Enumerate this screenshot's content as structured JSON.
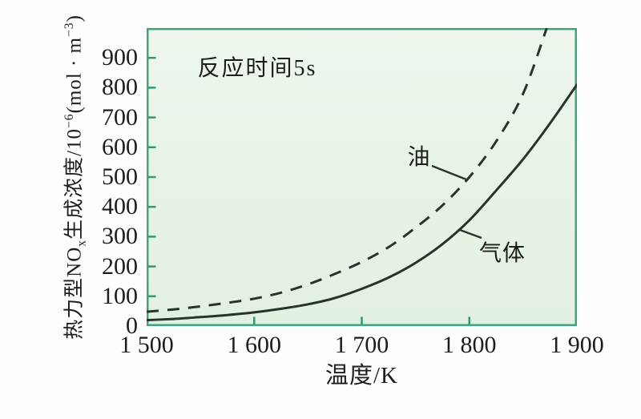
{
  "colors": {
    "figure_background": "#fdfdfc",
    "plot_background_top": "#eef6ed",
    "plot_background_bottom": "#e2f0e1",
    "plot_border": "#3ea57d",
    "tick_mark": "#2f9a6d",
    "curve": "#26342c",
    "text": "#1d1d1b"
  },
  "chart_data": {
    "type": "line",
    "title": "",
    "annotation": "反应时间5s",
    "xlabel": "温度/K",
    "ylabel": "热力型NOx生成浓度/10−6(mol·m−3)",
    "ylabel_parts": {
      "base1": "热力型NO",
      "sub1": "x",
      "base2": "生成浓度/10",
      "sup1": "−6",
      "base3": "(mol · m",
      "sup2": "−3",
      "base4": ")"
    },
    "xlim": [
      1500,
      1900
    ],
    "ylim": [
      0,
      1000
    ],
    "grid": false,
    "legend_position": "inline-annotations",
    "xticks": [
      {
        "v": 1500,
        "label": "1 500"
      },
      {
        "v": 1600,
        "label": "1 600"
      },
      {
        "v": 1700,
        "label": "1 700"
      },
      {
        "v": 1800,
        "label": "1 800"
      },
      {
        "v": 1900,
        "label": "1 900"
      }
    ],
    "yticks": [
      {
        "v": 0,
        "label": "0"
      },
      {
        "v": 100,
        "label": "100"
      },
      {
        "v": 200,
        "label": "200"
      },
      {
        "v": 300,
        "label": "300"
      },
      {
        "v": 400,
        "label": "400"
      },
      {
        "v": 500,
        "label": "500"
      },
      {
        "v": 600,
        "label": "600"
      },
      {
        "v": 700,
        "label": "700"
      },
      {
        "v": 800,
        "label": "800"
      },
      {
        "v": 900,
        "label": "900"
      }
    ],
    "series": [
      {
        "name": "gas",
        "label": "气体",
        "line_style": "solid",
        "points": [
          [
            1500,
            20
          ],
          [
            1525,
            24
          ],
          [
            1550,
            30
          ],
          [
            1575,
            37
          ],
          [
            1600,
            46
          ],
          [
            1625,
            58
          ],
          [
            1650,
            73
          ],
          [
            1675,
            94
          ],
          [
            1700,
            125
          ],
          [
            1725,
            163
          ],
          [
            1750,
            212
          ],
          [
            1775,
            275
          ],
          [
            1800,
            355
          ],
          [
            1825,
            455
          ],
          [
            1850,
            560
          ],
          [
            1875,
            680
          ],
          [
            1900,
            810
          ]
        ]
      },
      {
        "name": "oil",
        "label": "油",
        "line_style": "dashed",
        "points": [
          [
            1500,
            48
          ],
          [
            1525,
            56
          ],
          [
            1550,
            66
          ],
          [
            1575,
            78
          ],
          [
            1600,
            92
          ],
          [
            1625,
            112
          ],
          [
            1650,
            140
          ],
          [
            1675,
            175
          ],
          [
            1700,
            215
          ],
          [
            1725,
            265
          ],
          [
            1750,
            330
          ],
          [
            1775,
            405
          ],
          [
            1800,
            500
          ],
          [
            1825,
            620
          ],
          [
            1850,
            780
          ],
          [
            1872,
            1000
          ]
        ]
      }
    ]
  }
}
